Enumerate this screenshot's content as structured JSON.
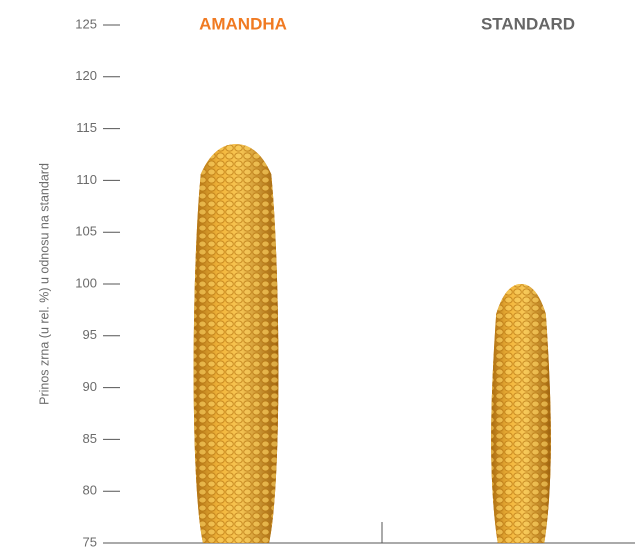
{
  "chart_data": {
    "type": "bar",
    "y_label": "Prinos zrna (u rel. %) u odnosu na standard",
    "categories": [
      "AMANDHA",
      "STANDARD"
    ],
    "category_colors": [
      "#f07a22",
      "#666666"
    ],
    "values": [
      113.5,
      100
    ],
    "color": "#e6a02a",
    "ylim": [
      75,
      125
    ],
    "yticks": [
      75,
      80,
      85,
      90,
      95,
      100,
      105,
      110,
      115,
      120,
      125
    ]
  }
}
